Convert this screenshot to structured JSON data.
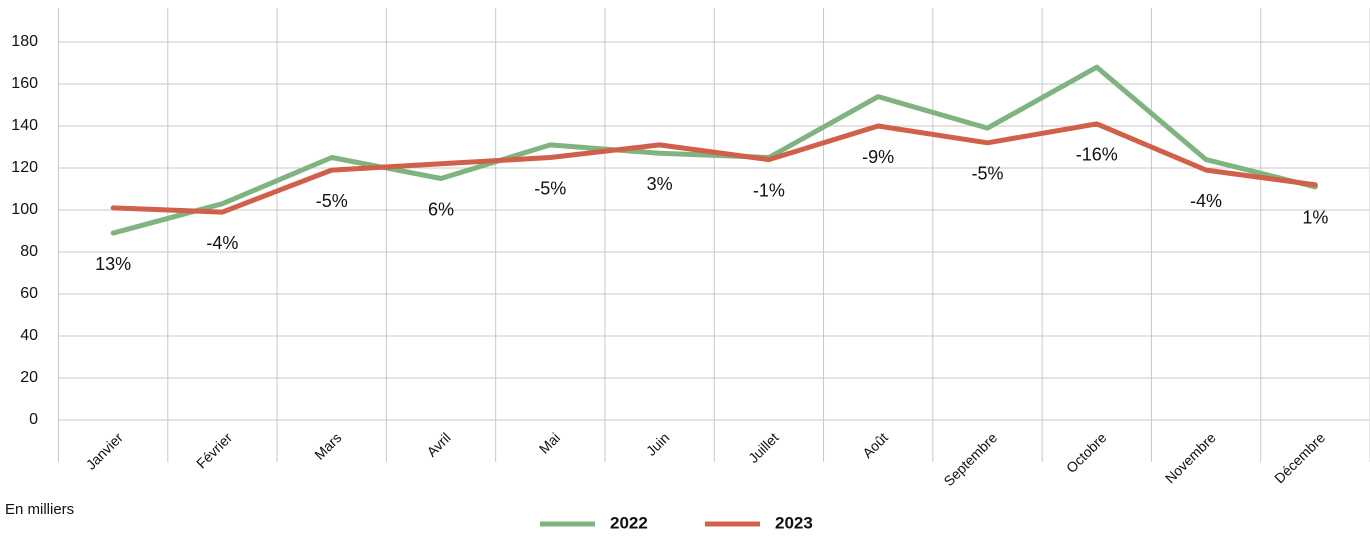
{
  "chart_data": {
    "type": "line",
    "categories": [
      "Janvier",
      "Février",
      "Mars",
      "Avril",
      "Mai",
      "Juin",
      "Juillet",
      "Août",
      "Septembre",
      "Octobre",
      "Novembre",
      "Décembre"
    ],
    "series": [
      {
        "name": "2022",
        "color": "#7fb37f",
        "values": [
          89,
          103,
          125,
          115,
          131,
          127,
          125,
          154,
          139,
          168,
          124,
          111
        ]
      },
      {
        "name": "2023",
        "color": "#d0604a",
        "values": [
          101,
          99,
          119,
          122,
          125,
          131,
          124,
          140,
          132,
          141,
          119,
          112
        ]
      }
    ],
    "annotations": [
      "13%",
      "-4%",
      "-5%",
      "6%",
      "-5%",
      "3%",
      "-1%",
      "-9%",
      "-5%",
      "-16%",
      "-4%",
      "1%"
    ],
    "unit_note": "En milliers",
    "ylim": [
      0,
      195
    ],
    "yticks": [
      0,
      20,
      40,
      60,
      80,
      100,
      120,
      140,
      160,
      180
    ],
    "grid": true,
    "legend": "bottom"
  }
}
